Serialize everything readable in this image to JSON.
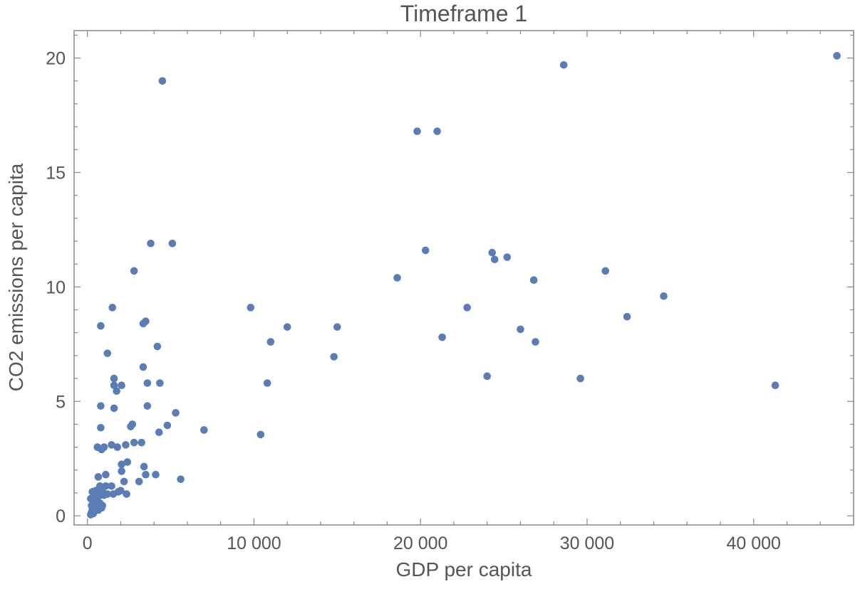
{
  "chart_data": {
    "type": "scatter",
    "title": "Timeframe 1",
    "xlabel": "GDP per capita",
    "ylabel": "CO2 emissions per capita",
    "xlim": [
      -800,
      46000
    ],
    "ylim": [
      -0.4,
      21.2
    ],
    "x_ticks": [
      0,
      10000,
      20000,
      30000,
      40000
    ],
    "x_tick_labels": [
      "0",
      "10 000",
      "20 000",
      "30 000",
      "40 000"
    ],
    "x_minor_step": 2000,
    "y_ticks": [
      0,
      5,
      10,
      15,
      20
    ],
    "y_tick_labels": [
      "0",
      "5",
      "10",
      "15",
      "20"
    ],
    "y_minor_step": 1,
    "grid": false,
    "color": "#5a7db5",
    "points": [
      [
        45000,
        20.1
      ],
      [
        28600,
        19.7
      ],
      [
        4500,
        19.0
      ],
      [
        19800,
        16.8
      ],
      [
        21000,
        16.8
      ],
      [
        3800,
        11.9
      ],
      [
        5100,
        11.9
      ],
      [
        20300,
        11.6
      ],
      [
        24300,
        11.5
      ],
      [
        25200,
        11.3
      ],
      [
        24450,
        11.2
      ],
      [
        2800,
        10.7
      ],
      [
        31100,
        10.7
      ],
      [
        18600,
        10.4
      ],
      [
        26800,
        10.3
      ],
      [
        34600,
        9.6
      ],
      [
        1500,
        9.1
      ],
      [
        9800,
        9.1
      ],
      [
        22800,
        9.1
      ],
      [
        32400,
        8.7
      ],
      [
        3500,
        8.5
      ],
      [
        3350,
        8.4
      ],
      [
        800,
        8.3
      ],
      [
        12000,
        8.25
      ],
      [
        15000,
        8.25
      ],
      [
        26000,
        8.15
      ],
      [
        21300,
        7.8
      ],
      [
        11000,
        7.6
      ],
      [
        26900,
        7.6
      ],
      [
        4200,
        7.4
      ],
      [
        1200,
        7.1
      ],
      [
        14800,
        6.95
      ],
      [
        3350,
        6.5
      ],
      [
        24000,
        6.1
      ],
      [
        1600,
        6.0
      ],
      [
        29600,
        6.0
      ],
      [
        1600,
        5.7
      ],
      [
        2050,
        5.7
      ],
      [
        3600,
        5.8
      ],
      [
        4350,
        5.8
      ],
      [
        10800,
        5.8
      ],
      [
        1750,
        5.45
      ],
      [
        41300,
        5.7
      ],
      [
        800,
        4.8
      ],
      [
        1600,
        4.7
      ],
      [
        3600,
        4.8
      ],
      [
        5300,
        4.5
      ],
      [
        4800,
        3.95
      ],
      [
        2700,
        4.0
      ],
      [
        2600,
        3.9
      ],
      [
        800,
        3.85
      ],
      [
        7000,
        3.75
      ],
      [
        4300,
        3.65
      ],
      [
        10400,
        3.55
      ],
      [
        2800,
        3.2
      ],
      [
        3250,
        3.2
      ],
      [
        2300,
        3.1
      ],
      [
        1450,
        3.1
      ],
      [
        600,
        3.0
      ],
      [
        1000,
        3.0
      ],
      [
        1800,
        3.0
      ],
      [
        850,
        2.9
      ],
      [
        2400,
        2.35
      ],
      [
        2050,
        2.25
      ],
      [
        3400,
        2.15
      ],
      [
        2050,
        1.95
      ],
      [
        650,
        1.7
      ],
      [
        1100,
        1.8
      ],
      [
        3500,
        1.8
      ],
      [
        4100,
        1.8
      ],
      [
        5600,
        1.6
      ],
      [
        2200,
        1.5
      ],
      [
        3100,
        1.5
      ],
      [
        750,
        1.3
      ],
      [
        1100,
        1.3
      ],
      [
        1450,
        1.3
      ],
      [
        2000,
        1.1
      ],
      [
        1850,
        1.05
      ],
      [
        2350,
        0.95
      ],
      [
        1550,
        0.95
      ],
      [
        300,
        1.05
      ],
      [
        500,
        1.1
      ],
      [
        700,
        1.1
      ],
      [
        900,
        1.05
      ],
      [
        1200,
        0.95
      ],
      [
        1000,
        0.9
      ],
      [
        200,
        0.75
      ],
      [
        350,
        0.8
      ],
      [
        550,
        0.85
      ],
      [
        800,
        0.9
      ],
      [
        450,
        0.65
      ],
      [
        650,
        0.6
      ],
      [
        250,
        0.45
      ],
      [
        500,
        0.5
      ],
      [
        750,
        0.55
      ],
      [
        900,
        0.45
      ],
      [
        300,
        0.3
      ],
      [
        550,
        0.35
      ],
      [
        850,
        0.35
      ],
      [
        250,
        0.15
      ],
      [
        400,
        0.2
      ],
      [
        650,
        0.25
      ],
      [
        200,
        0.05
      ],
      [
        350,
        0.1
      ]
    ]
  }
}
